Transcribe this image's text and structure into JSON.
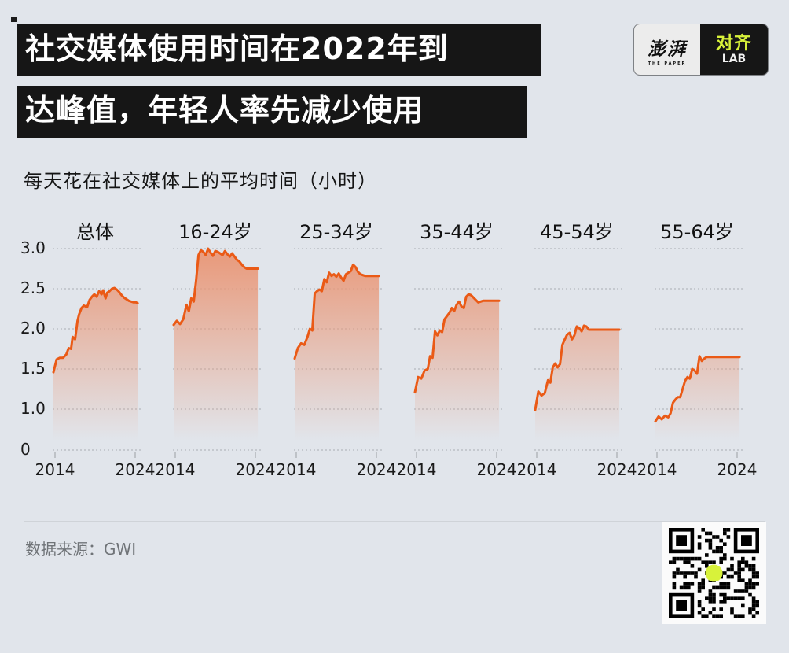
{
  "header": {
    "title_line1": "社交媒体使用时间在2022年到",
    "title_line2": "达峰值，年轻人率先减少使用",
    "logo": {
      "left_brand": "澎湃",
      "left_sub": "THE PAPER",
      "right_brand": "对齐",
      "right_sub": "LAB",
      "accent_color": "#d8f23a"
    }
  },
  "subtitle": "每天花在社交媒体上的平均时间（小时）",
  "footer": {
    "source": "数据来源：GWI",
    "qr_code": "qr-code-image"
  },
  "colors": {
    "line": "#ea5a16",
    "area_top": "#eaa07c",
    "background": "#e1e5eb",
    "title_bg": "#161616"
  },
  "chart_data": {
    "type": "area",
    "title": "每天花在社交媒体上的平均时间（小时）",
    "xlabel": "",
    "ylabel": "小时",
    "y_ticks": [
      "0",
      "1.0",
      "1.5",
      "2.0",
      "2.5",
      "3.0"
    ],
    "ylim": [
      0,
      3.0
    ],
    "axis_break_note": "y-axis between 0 and 1.0 is compressed",
    "x_ticks": [
      "2014",
      "2024"
    ],
    "grid": true,
    "panels": [
      {
        "label": "总体",
        "x": [
          2013.8,
          2014.2,
          2014.6,
          2015.0,
          2015.4,
          2015.7,
          2016.0,
          2016.2,
          2016.5,
          2016.8,
          2017.0,
          2017.3,
          2017.6,
          2018.0,
          2018.3,
          2018.6,
          2018.9,
          2019.2,
          2019.5,
          2019.8,
          2020.0,
          2020.3,
          2020.5,
          2020.8,
          2021.1,
          2021.4,
          2021.7,
          2022.0,
          2022.3,
          2022.6,
          2022.9,
          2023.2,
          2023.5,
          2023.8,
          2024.1,
          2024.3
        ],
        "values": [
          1.46,
          1.62,
          1.64,
          1.64,
          1.68,
          1.76,
          1.75,
          1.9,
          1.87,
          2.1,
          2.18,
          2.26,
          2.29,
          2.27,
          2.36,
          2.4,
          2.43,
          2.4,
          2.47,
          2.43,
          2.48,
          2.38,
          2.45,
          2.47,
          2.5,
          2.51,
          2.49,
          2.46,
          2.42,
          2.39,
          2.37,
          2.35,
          2.34,
          2.33,
          2.33,
          2.32
        ]
      },
      {
        "label": "16-24岁",
        "x": [
          2013.8,
          2014.2,
          2014.6,
          2015.0,
          2015.4,
          2015.7,
          2016.0,
          2016.3,
          2016.6,
          2016.9,
          2017.2,
          2017.5,
          2017.8,
          2018.1,
          2018.4,
          2018.7,
          2019.0,
          2019.3,
          2019.6,
          2019.9,
          2020.2,
          2020.5,
          2020.8,
          2021.1,
          2021.4,
          2021.7,
          2022.0,
          2022.3,
          2022.6,
          2022.9,
          2023.2,
          2023.5,
          2023.8,
          2024.1,
          2024.3
        ],
        "values": [
          2.05,
          2.1,
          2.06,
          2.12,
          2.3,
          2.22,
          2.38,
          2.34,
          2.6,
          2.92,
          2.98,
          2.96,
          2.92,
          3.0,
          2.95,
          2.91,
          2.97,
          2.96,
          2.94,
          2.92,
          2.97,
          2.93,
          2.9,
          2.94,
          2.9,
          2.86,
          2.84,
          2.8,
          2.77,
          2.75,
          2.75,
          2.75,
          2.75,
          2.75,
          2.75
        ]
      },
      {
        "label": "25-34岁",
        "x": [
          2013.8,
          2014.2,
          2014.6,
          2015.0,
          2015.4,
          2015.7,
          2016.0,
          2016.3,
          2016.6,
          2016.9,
          2017.2,
          2017.5,
          2017.8,
          2018.1,
          2018.4,
          2018.7,
          2019.0,
          2019.3,
          2019.6,
          2019.9,
          2020.2,
          2020.5,
          2020.8,
          2021.1,
          2021.4,
          2021.7,
          2022.0,
          2022.3,
          2022.6,
          2022.9,
          2023.2,
          2023.5,
          2023.8,
          2024.1,
          2024.3
        ],
        "values": [
          1.63,
          1.76,
          1.82,
          1.8,
          1.9,
          2.0,
          1.98,
          2.44,
          2.47,
          2.49,
          2.47,
          2.62,
          2.58,
          2.7,
          2.66,
          2.68,
          2.65,
          2.69,
          2.64,
          2.6,
          2.68,
          2.7,
          2.72,
          2.8,
          2.77,
          2.71,
          2.68,
          2.67,
          2.66,
          2.66,
          2.66,
          2.66,
          2.66,
          2.66,
          2.66
        ]
      },
      {
        "label": "35-44岁",
        "x": [
          2013.8,
          2014.2,
          2014.6,
          2015.0,
          2015.4,
          2015.7,
          2016.0,
          2016.3,
          2016.6,
          2016.9,
          2017.2,
          2017.5,
          2017.8,
          2018.1,
          2018.4,
          2018.7,
          2019.0,
          2019.3,
          2019.6,
          2019.9,
          2020.2,
          2020.5,
          2020.8,
          2021.1,
          2021.4,
          2021.7,
          2022.0,
          2022.3,
          2022.6,
          2022.9,
          2023.2,
          2023.5,
          2023.8,
          2024.1,
          2024.3
        ],
        "values": [
          1.21,
          1.4,
          1.38,
          1.48,
          1.5,
          1.66,
          1.64,
          1.97,
          1.92,
          1.98,
          1.96,
          2.12,
          2.16,
          2.2,
          2.26,
          2.22,
          2.3,
          2.34,
          2.28,
          2.26,
          2.4,
          2.43,
          2.42,
          2.39,
          2.36,
          2.33,
          2.34,
          2.35,
          2.35,
          2.35,
          2.35,
          2.35,
          2.35,
          2.35,
          2.35
        ]
      },
      {
        "label": "45-54岁",
        "x": [
          2013.8,
          2014.2,
          2014.6,
          2015.0,
          2015.4,
          2015.7,
          2016.0,
          2016.3,
          2016.6,
          2016.9,
          2017.2,
          2017.5,
          2017.8,
          2018.1,
          2018.4,
          2018.7,
          2019.0,
          2019.3,
          2019.6,
          2019.9,
          2020.2,
          2020.5,
          2020.8,
          2021.1,
          2021.4,
          2021.7,
          2022.0,
          2022.3,
          2022.6,
          2022.9,
          2023.2,
          2023.5,
          2023.8,
          2024.1,
          2024.3
        ],
        "values": [
          0.98,
          1.22,
          1.17,
          1.2,
          1.36,
          1.33,
          1.52,
          1.57,
          1.52,
          1.56,
          1.8,
          1.87,
          1.93,
          1.95,
          1.87,
          1.92,
          2.03,
          2.01,
          1.97,
          2.04,
          2.03,
          1.99,
          1.99,
          1.99,
          1.99,
          1.99,
          1.99,
          1.99,
          1.99,
          1.99,
          1.99,
          1.99,
          1.99,
          1.99,
          1.99
        ]
      },
      {
        "label": "55-64岁",
        "x": [
          2013.8,
          2014.2,
          2014.6,
          2015.0,
          2015.4,
          2015.7,
          2016.0,
          2016.3,
          2016.6,
          2016.9,
          2017.2,
          2017.5,
          2017.8,
          2018.1,
          2018.4,
          2018.7,
          2019.0,
          2019.3,
          2019.6,
          2019.9,
          2020.2,
          2020.5,
          2020.8,
          2021.1,
          2021.4,
          2021.7,
          2022.0,
          2022.3,
          2022.6,
          2022.9,
          2023.2,
          2023.5,
          2023.8,
          2024.1,
          2024.3
        ],
        "values": [
          0.7,
          0.82,
          0.75,
          0.84,
          0.8,
          0.9,
          1.08,
          1.12,
          1.15,
          1.15,
          1.25,
          1.35,
          1.4,
          1.38,
          1.5,
          1.48,
          1.44,
          1.66,
          1.6,
          1.63,
          1.65,
          1.65,
          1.65,
          1.65,
          1.65,
          1.65,
          1.65,
          1.65,
          1.65,
          1.65,
          1.65,
          1.65,
          1.65,
          1.65,
          1.65
        ]
      }
    ]
  }
}
